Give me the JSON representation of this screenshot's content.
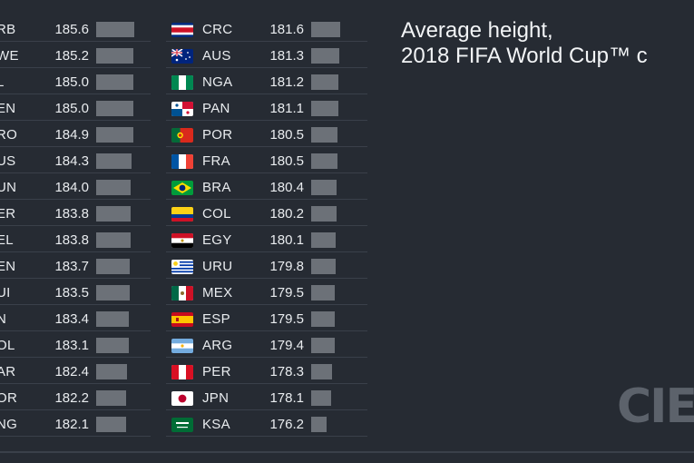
{
  "title": {
    "line1": "Average height,",
    "line2": "2018 FIFA World Cup™ c"
  },
  "logo_text": "CIES",
  "colors": {
    "background": "#262b33",
    "bar": "#6c7178",
    "text": "#e9ecef",
    "divider": "#3a404a"
  },
  "chart_data": {
    "type": "bar",
    "orientation": "horizontal",
    "title": "Average height, 2018 FIFA World Cup™ c",
    "scale_min_for_bars": 170,
    "left_column": [
      {
        "code": "RB",
        "value": 185.6
      },
      {
        "code": "WE",
        "value": 185.2
      },
      {
        "code": "L",
        "value": 185.0
      },
      {
        "code": "EN",
        "value": 185.0
      },
      {
        "code": "RO",
        "value": 184.9
      },
      {
        "code": "US",
        "value": 184.3
      },
      {
        "code": "UN",
        "value": 184.0
      },
      {
        "code": "ER",
        "value": 183.8
      },
      {
        "code": "EL",
        "value": 183.8
      },
      {
        "code": "EN",
        "value": 183.7
      },
      {
        "code": "UI",
        "value": 183.5
      },
      {
        "code": "N",
        "value": 183.4
      },
      {
        "code": "OL",
        "value": 183.1
      },
      {
        "code": "AR",
        "value": 182.4
      },
      {
        "code": "OR",
        "value": 182.2
      },
      {
        "code": "NG",
        "value": 182.1
      }
    ],
    "right_column": [
      {
        "code": "CRC",
        "value": 181.6,
        "flag": "costa-rica"
      },
      {
        "code": "AUS",
        "value": 181.3,
        "flag": "australia"
      },
      {
        "code": "NGA",
        "value": 181.2,
        "flag": "nigeria"
      },
      {
        "code": "PAN",
        "value": 181.1,
        "flag": "panama"
      },
      {
        "code": "POR",
        "value": 180.5,
        "flag": "portugal"
      },
      {
        "code": "FRA",
        "value": 180.5,
        "flag": "france"
      },
      {
        "code": "BRA",
        "value": 180.4,
        "flag": "brazil"
      },
      {
        "code": "COL",
        "value": 180.2,
        "flag": "colombia"
      },
      {
        "code": "EGY",
        "value": 180.1,
        "flag": "egypt"
      },
      {
        "code": "URU",
        "value": 179.8,
        "flag": "uruguay"
      },
      {
        "code": "MEX",
        "value": 179.5,
        "flag": "mexico"
      },
      {
        "code": "ESP",
        "value": 179.5,
        "flag": "spain"
      },
      {
        "code": "ARG",
        "value": 179.4,
        "flag": "argentina"
      },
      {
        "code": "PER",
        "value": 178.3,
        "flag": "peru"
      },
      {
        "code": "JPN",
        "value": 178.1,
        "flag": "japan"
      },
      {
        "code": "KSA",
        "value": 176.2,
        "flag": "saudi-arabia"
      }
    ]
  }
}
